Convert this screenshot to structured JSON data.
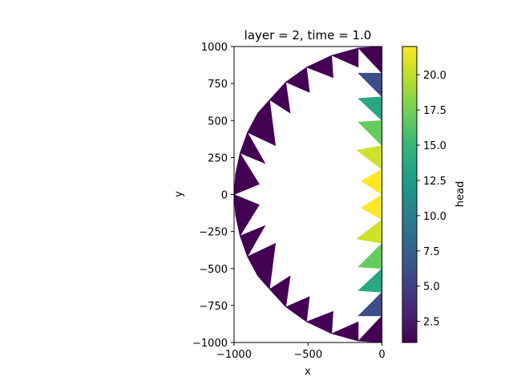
{
  "chart_data": {
    "type": "heatmap",
    "title": "layer = 2, time = 1.0",
    "xlabel": "x",
    "ylabel": "y",
    "xlim": [
      -1000,
      0
    ],
    "ylim": [
      -1000,
      1000
    ],
    "x_ticks": [
      -1000,
      -500,
      0
    ],
    "x_tick_labels": [
      "−1000",
      "−500",
      "0"
    ],
    "y_ticks": [
      1000,
      750,
      500,
      250,
      0,
      -250,
      -500,
      -750,
      -1000
    ],
    "y_tick_labels": [
      "1000",
      "750",
      "500",
      "250",
      "0",
      "−250",
      "−500",
      "−750",
      "−1000"
    ],
    "colorbar": {
      "label": "head",
      "range": [
        1.0,
        22.0
      ],
      "ticks": [
        2.5,
        5.0,
        7.5,
        10.0,
        12.5,
        15.0,
        17.5,
        20.0
      ],
      "tick_labels": [
        "2.5",
        "5.0",
        "7.5",
        "10.0",
        "12.5",
        "15.0",
        "17.5",
        "20.0"
      ]
    },
    "cells": [
      {
        "head": 1.0,
        "points": [
          [
            -1000,
            0
          ],
          [
            -990,
            140
          ],
          [
            -830,
            70
          ]
        ]
      },
      {
        "head": 1.0,
        "points": [
          [
            -990,
            140
          ],
          [
            -960,
            280
          ],
          [
            -830,
            70
          ]
        ]
      },
      {
        "head": 1.0,
        "points": [
          [
            -960,
            280
          ],
          [
            -910,
            420
          ],
          [
            -790,
            210
          ]
        ]
      },
      {
        "head": 1.0,
        "points": [
          [
            -910,
            420
          ],
          [
            -840,
            550
          ],
          [
            -720,
            330
          ]
        ]
      },
      {
        "head": 1.0,
        "points": [
          [
            -840,
            550
          ],
          [
            -760,
            640
          ],
          [
            -720,
            330
          ]
        ]
      },
      {
        "head": 1.0,
        "points": [
          [
            -760,
            640
          ],
          [
            -650,
            760
          ],
          [
            -620,
            550
          ]
        ]
      },
      {
        "head": 1.0,
        "points": [
          [
            -650,
            760
          ],
          [
            -510,
            860
          ],
          [
            -490,
            690
          ]
        ]
      },
      {
        "head": 1.0,
        "points": [
          [
            -510,
            860
          ],
          [
            -340,
            940
          ],
          [
            -330,
            790
          ]
        ]
      },
      {
        "head": 1.0,
        "points": [
          [
            -340,
            940
          ],
          [
            -160,
            990
          ],
          [
            -160,
            860
          ]
        ]
      },
      {
        "head": 1.0,
        "points": [
          [
            -160,
            990
          ],
          [
            0,
            1000
          ],
          [
            0,
            820
          ]
        ]
      },
      {
        "head": 6.0,
        "points": [
          [
            0,
            820
          ],
          [
            0,
            660
          ],
          [
            -160,
            820
          ]
        ]
      },
      {
        "head": 13.5,
        "points": [
          [
            0,
            660
          ],
          [
            0,
            500
          ],
          [
            -160,
            650
          ]
        ]
      },
      {
        "head": 17.0,
        "points": [
          [
            0,
            500
          ],
          [
            0,
            330
          ],
          [
            -160,
            490
          ]
        ]
      },
      {
        "head": 20.5,
        "points": [
          [
            0,
            330
          ],
          [
            0,
            170
          ],
          [
            -170,
            300
          ]
        ]
      },
      {
        "head": 22.0,
        "points": [
          [
            0,
            170
          ],
          [
            0,
            0
          ],
          [
            -140,
            90
          ]
        ]
      },
      {
        "head": 22.0,
        "points": [
          [
            0,
            0
          ],
          [
            0,
            -170
          ],
          [
            -140,
            -90
          ]
        ]
      },
      {
        "head": 20.5,
        "points": [
          [
            0,
            -170
          ],
          [
            0,
            -330
          ],
          [
            -170,
            -300
          ]
        ]
      },
      {
        "head": 17.0,
        "points": [
          [
            0,
            -330
          ],
          [
            0,
            -500
          ],
          [
            -160,
            -490
          ]
        ]
      },
      {
        "head": 13.5,
        "points": [
          [
            0,
            -500
          ],
          [
            0,
            -660
          ],
          [
            -160,
            -650
          ]
        ]
      },
      {
        "head": 6.0,
        "points": [
          [
            0,
            -660
          ],
          [
            0,
            -820
          ],
          [
            -160,
            -820
          ]
        ]
      },
      {
        "head": 1.0,
        "points": [
          [
            0,
            -820
          ],
          [
            0,
            -1000
          ],
          [
            -160,
            -990
          ]
        ]
      },
      {
        "head": 1.0,
        "points": [
          [
            -160,
            -990
          ],
          [
            -340,
            -940
          ],
          [
            -160,
            -860
          ]
        ]
      },
      {
        "head": 1.0,
        "points": [
          [
            -340,
            -940
          ],
          [
            -510,
            -860
          ],
          [
            -330,
            -790
          ]
        ]
      },
      {
        "head": 1.0,
        "points": [
          [
            -510,
            -860
          ],
          [
            -650,
            -760
          ],
          [
            -490,
            -690
          ]
        ]
      },
      {
        "head": 1.0,
        "points": [
          [
            -650,
            -760
          ],
          [
            -760,
            -640
          ],
          [
            -620,
            -550
          ]
        ]
      },
      {
        "head": 1.0,
        "points": [
          [
            -760,
            -640
          ],
          [
            -840,
            -550
          ],
          [
            -720,
            -330
          ]
        ]
      },
      {
        "head": 1.0,
        "points": [
          [
            -840,
            -550
          ],
          [
            -910,
            -420
          ],
          [
            -720,
            -330
          ]
        ]
      },
      {
        "head": 1.0,
        "points": [
          [
            -910,
            -420
          ],
          [
            -960,
            -280
          ],
          [
            -790,
            -210
          ]
        ]
      },
      {
        "head": 1.0,
        "points": [
          [
            -960,
            -280
          ],
          [
            -990,
            -140
          ],
          [
            -830,
            -70
          ]
        ]
      },
      {
        "head": 1.0,
        "points": [
          [
            -990,
            -140
          ],
          [
            -1000,
            0
          ],
          [
            -830,
            -70
          ]
        ]
      }
    ]
  },
  "colors": {
    "viridis": [
      "#440154",
      "#482878",
      "#3e4989",
      "#31688e",
      "#26828e",
      "#1f9e89",
      "#35b779",
      "#6ece58",
      "#b5de2b",
      "#fde725"
    ]
  }
}
